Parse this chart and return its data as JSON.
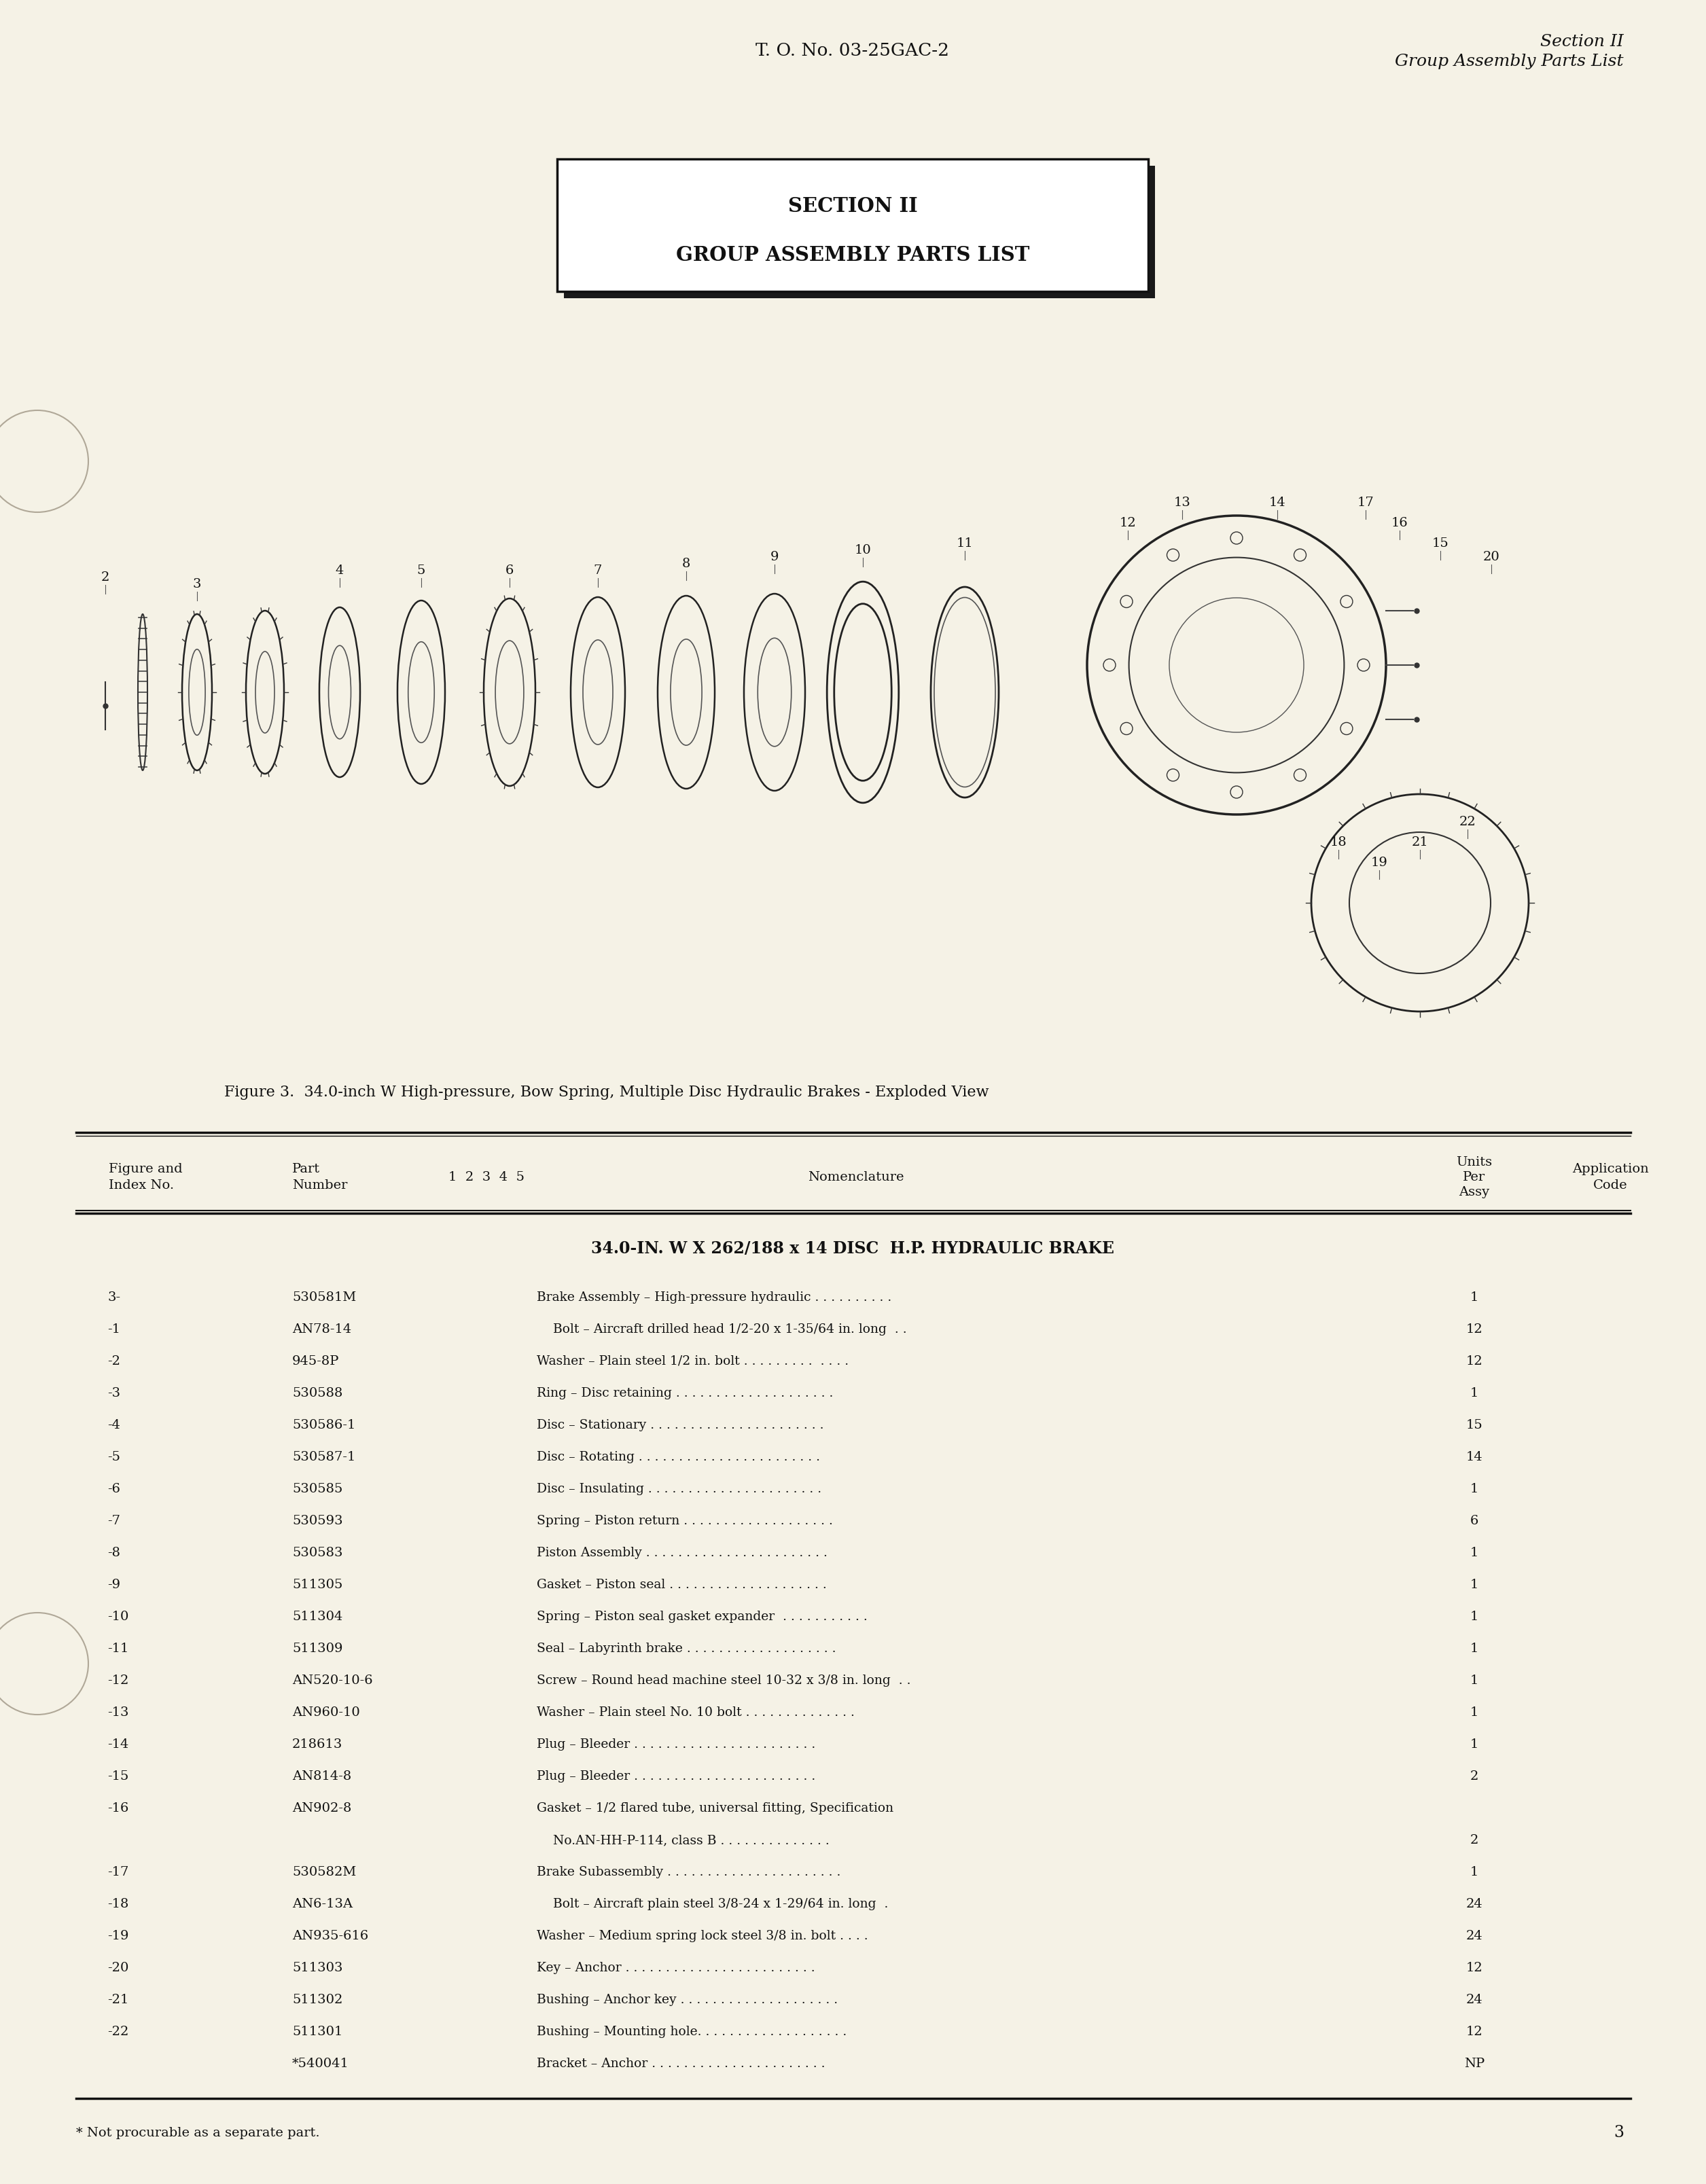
{
  "bg_color": "#f5f2e6",
  "header_to_text": "T. O. No. 03-25GAC-2",
  "header_right_line1": "Section II",
  "header_right_line2": "Group Assembly Parts List",
  "section_box_title": "SECTION II",
  "section_box_subtitle": "GROUP ASSEMBLY PARTS LIST",
  "figure_caption": "Figure 3.  34.0-inch W High-pressure, Bow Spring, Multiple Disc Hydraulic Brakes - Exploded View",
  "table_section_header": "34.0-IN. W X 262/188 x 14 DISC  H.P. HYDRAULIC BRAKE",
  "footnote": "* Not procurable as a separate part.",
  "page_number": "3",
  "table_rows": [
    [
      "3-",
      "530581M",
      "Brake Assembly – High-pressure hydraulic . . . . . . . . . .",
      "1"
    ],
    [
      "-1",
      "AN78-14",
      "    Bolt – Aircraft drilled head 1/2-20 x 1-35/64 in. long  . .",
      "12"
    ],
    [
      "-2",
      "945-8P",
      "Washer – Plain steel 1/2 in. bolt . . . . . . . . .  . . . .",
      "12"
    ],
    [
      "-3",
      "530588",
      "Ring – Disc retaining . . . . . . . . . . . . . . . . . . . .",
      "1"
    ],
    [
      "-4",
      "530586-1",
      "Disc – Stationary . . . . . . . . . . . . . . . . . . . . . .",
      "15"
    ],
    [
      "-5",
      "530587-1",
      "Disc – Rotating . . . . . . . . . . . . . . . . . . . . . . .",
      "14"
    ],
    [
      "-6",
      "530585",
      "Disc – Insulating . . . . . . . . . . . . . . . . . . . . . .",
      "1"
    ],
    [
      "-7",
      "530593",
      "Spring – Piston return . . . . . . . . . . . . . . . . . . .",
      "6"
    ],
    [
      "-8",
      "530583",
      "Piston Assembly . . . . . . . . . . . . . . . . . . . . . . .",
      "1"
    ],
    [
      "-9",
      "511305",
      "Gasket – Piston seal . . . . . . . . . . . . . . . . . . . .",
      "1"
    ],
    [
      "-10",
      "511304",
      "Spring – Piston seal gasket expander  . . . . . . . . . . .",
      "1"
    ],
    [
      "-11",
      "511309",
      "Seal – Labyrinth brake . . . . . . . . . . . . . . . . . . .",
      "1"
    ],
    [
      "-12",
      "AN520-10-6",
      "Screw – Round head machine steel 10-32 x 3/8 in. long  . .",
      "1"
    ],
    [
      "-13",
      "AN960-10",
      "Washer – Plain steel No. 10 bolt . . . . . . . . . . . . . .",
      "1"
    ],
    [
      "-14",
      "218613",
      "Plug – Bleeder . . . . . . . . . . . . . . . . . . . . . . .",
      "1"
    ],
    [
      "-15",
      "AN814-8",
      "Plug – Bleeder . . . . . . . . . . . . . . . . . . . . . . .",
      "2"
    ],
    [
      "-16",
      "AN902-8",
      "Gasket – 1/2 flared tube, universal fitting, Specification",
      ""
    ],
    [
      "",
      "",
      "    No.AN-HH-P-114, class B . . . . . . . . . . . . . .",
      "2"
    ],
    [
      "-17",
      "530582M",
      "Brake Subassembly . . . . . . . . . . . . . . . . . . . . . .",
      "1"
    ],
    [
      "-18",
      "AN6-13A",
      "    Bolt – Aircraft plain steel 3/8-24 x 1-29/64 in. long  .",
      "24"
    ],
    [
      "-19",
      "AN935-616",
      "Washer – Medium spring lock steel 3/8 in. bolt . . . .",
      "24"
    ],
    [
      "-20",
      "511303",
      "Key – Anchor . . . . . . . . . . . . . . . . . . . . . . . .",
      "12"
    ],
    [
      "-21",
      "511302",
      "Bushing – Anchor key . . . . . . . . . . . . . . . . . . . .",
      "24"
    ],
    [
      "-22",
      "511301",
      "Bushing – Mounting hole. . . . . . . . . . . . . . . . . . .",
      "12"
    ],
    [
      "",
      "*540041",
      "Bracket – Anchor . . . . . . . . . . . . . . . . . . . . . .",
      "NP"
    ]
  ]
}
